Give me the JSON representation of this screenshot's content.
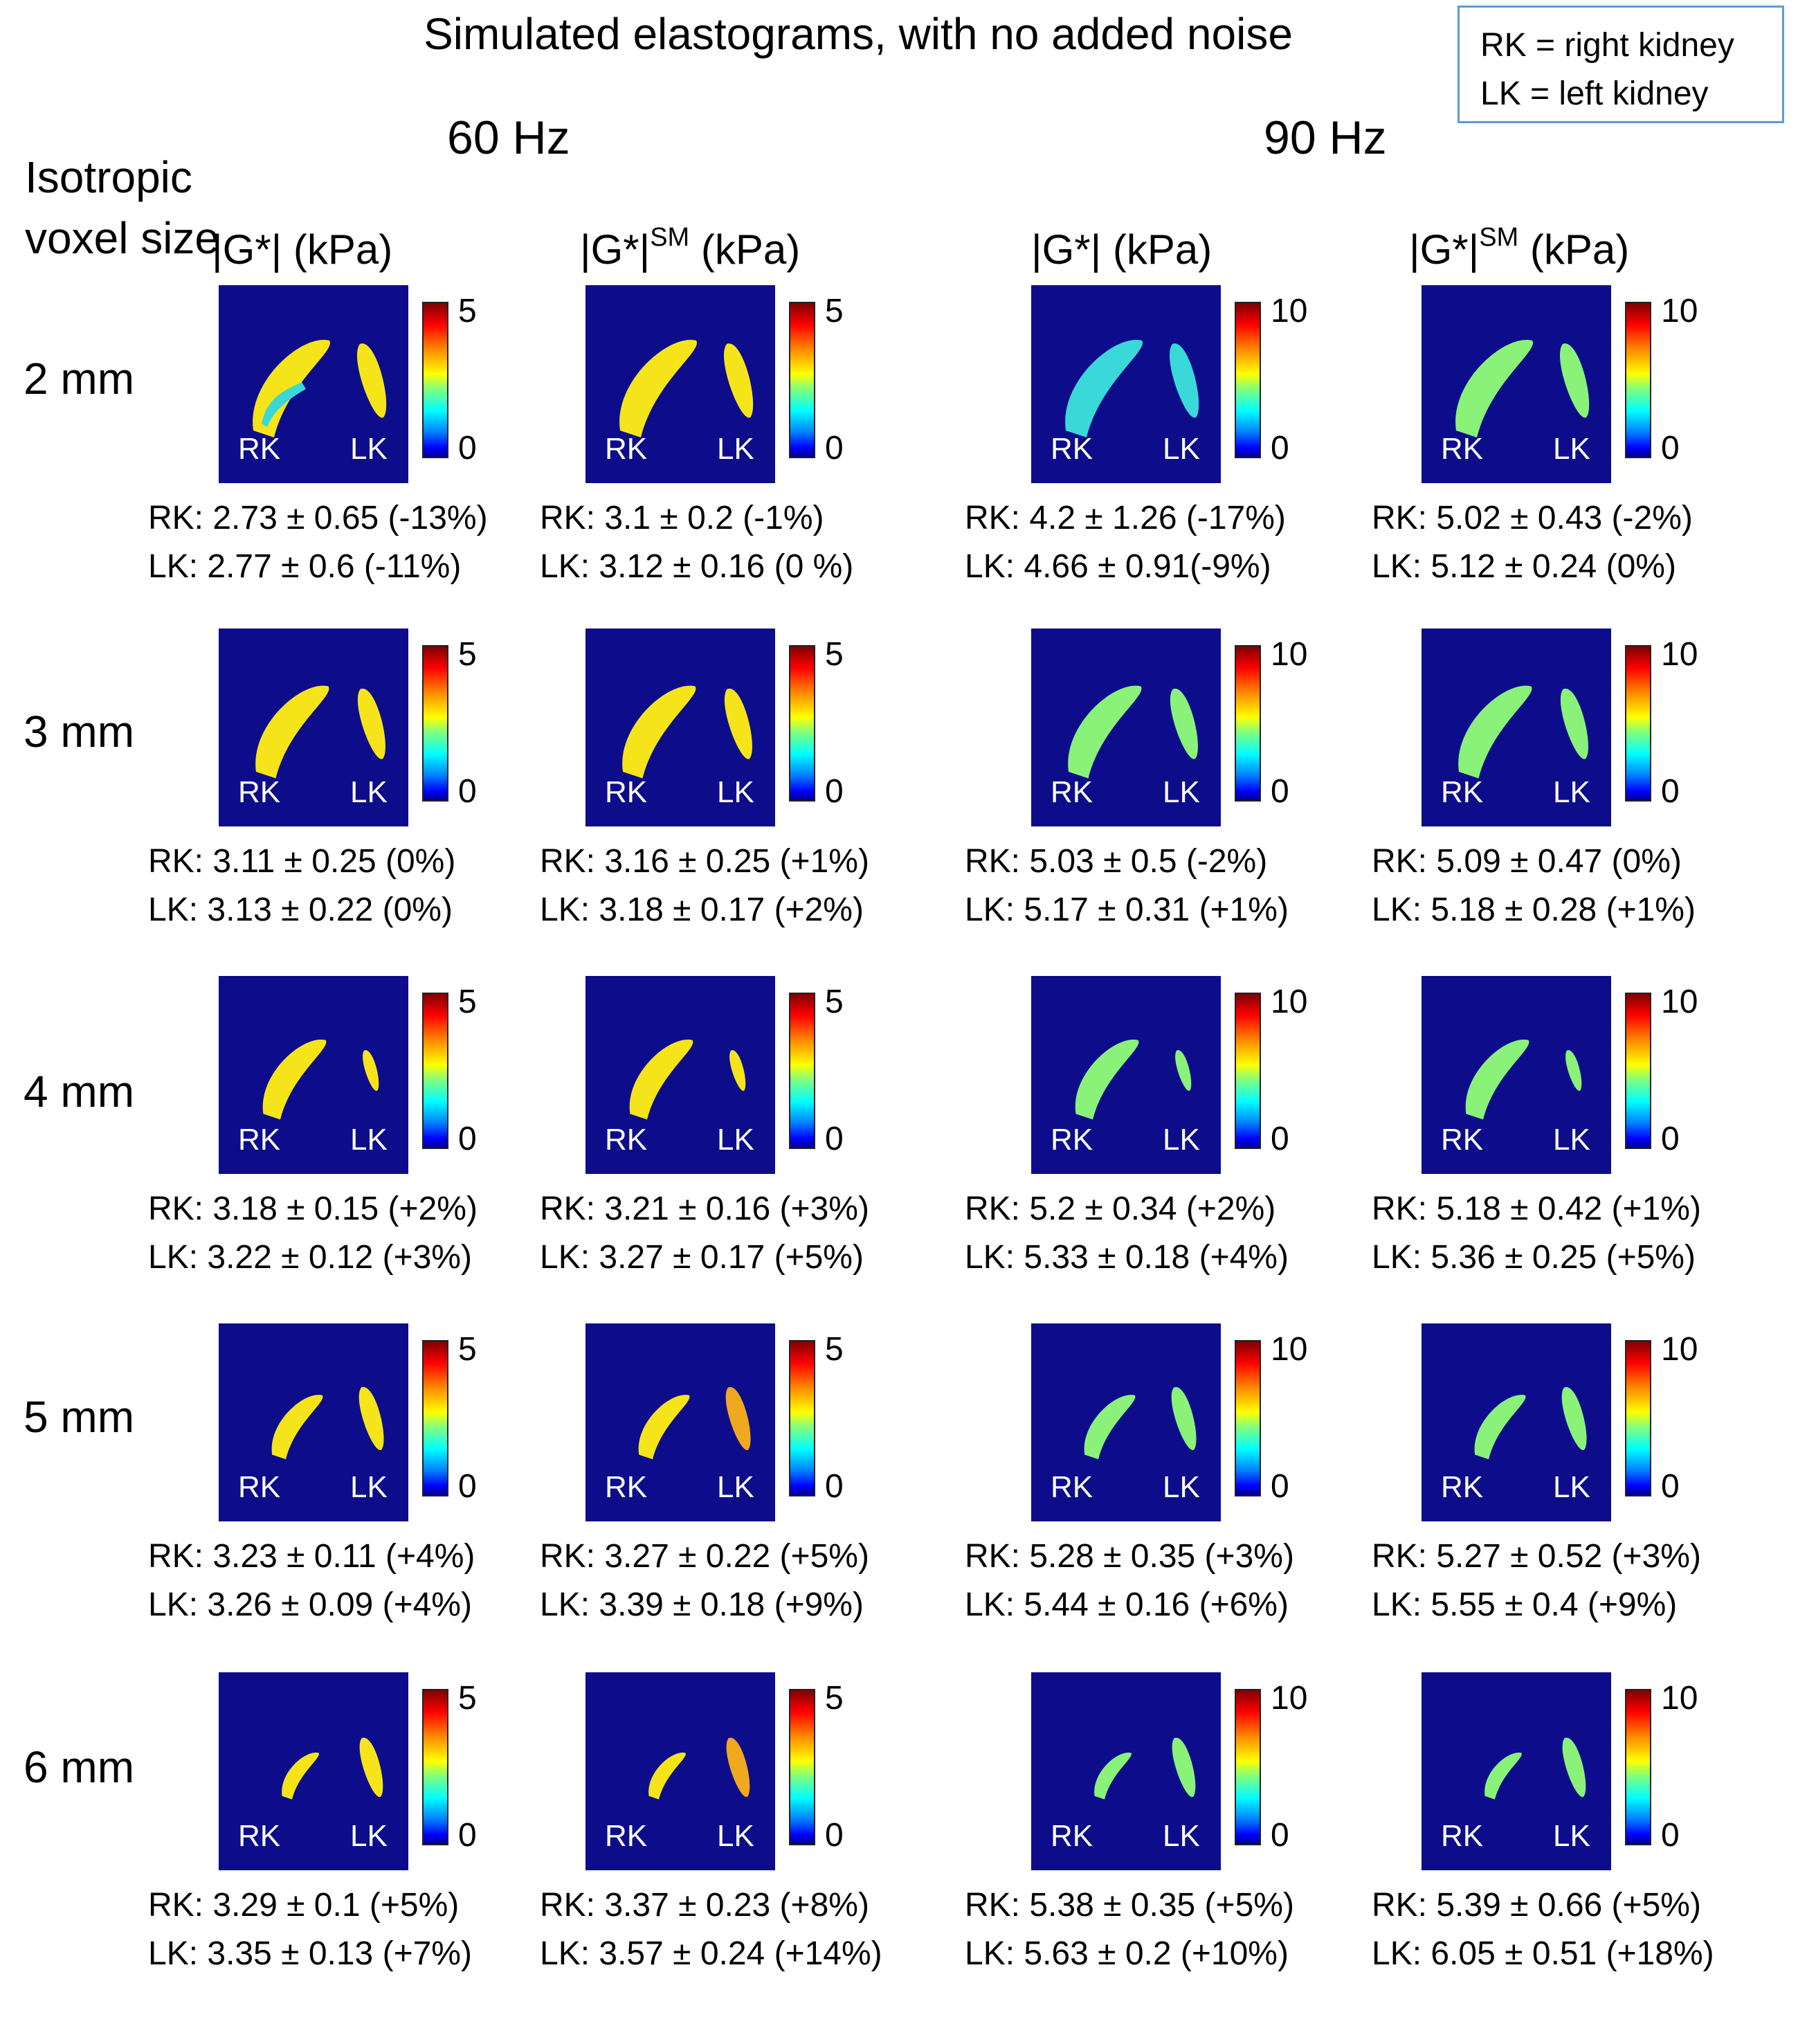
{
  "title": "Simulated elastograms, with no added noise",
  "legend": {
    "rk": "RK = right kidney",
    "lk": "LK = left kidney"
  },
  "frequencies": [
    "60 Hz",
    "90 Hz"
  ],
  "row_header": "Isotropic voxel size",
  "column_headers": [
    {
      "base": "|G*|",
      "sup": "",
      "unit": "(kPa)"
    },
    {
      "base": "|G*|",
      "sup": "SM",
      "unit": "(kPa)"
    },
    {
      "base": "|G*|",
      "sup": "",
      "unit": "(kPa)"
    },
    {
      "base": "|G*|",
      "sup": "SM",
      "unit": "(kPa)"
    }
  ],
  "kidney_labels": {
    "rk": "RK",
    "lk": "LK"
  },
  "colorbar_ticks": [
    {
      "max": "5",
      "min": "0"
    },
    {
      "max": "5",
      "min": "0"
    },
    {
      "max": "10",
      "min": "0"
    },
    {
      "max": "10",
      "min": "0"
    }
  ],
  "kidney_colors": {
    "mid_yellow": "#f5e41a",
    "orange": "#f0a91e",
    "green": "#8af278",
    "cyan": "#3ad8d8"
  },
  "rows": [
    {
      "label": "2 mm",
      "cells": [
        {
          "rk": "RK: 2.73 ± 0.65 (-13%)",
          "lk": "LK: 2.77 ± 0.6 (-11%)"
        },
        {
          "rk": "RK: 3.1 ± 0.2 (-1%)",
          "lk": "LK: 3.12 ± 0.16 (0 %)"
        },
        {
          "rk": "RK: 4.2 ± 1.26 (-17%)",
          "lk": "LK: 4.66 ± 0.91(-9%)"
        },
        {
          "rk": "RK: 5.02 ± 0.43 (-2%)",
          "lk": "LK: 5.12 ± 0.24 (0%)"
        }
      ]
    },
    {
      "label": "3 mm",
      "cells": [
        {
          "rk": "RK: 3.11 ± 0.25 (0%)",
          "lk": "LK: 3.13 ± 0.22 (0%)"
        },
        {
          "rk": "RK: 3.16 ± 0.25 (+1%)",
          "lk": "LK: 3.18 ± 0.17 (+2%)"
        },
        {
          "rk": "RK: 5.03 ± 0.5 (-2%)",
          "lk": "LK: 5.17 ± 0.31 (+1%)"
        },
        {
          "rk": "RK: 5.09 ± 0.47 (0%)",
          "lk": "LK: 5.18 ± 0.28 (+1%)"
        }
      ]
    },
    {
      "label": "4 mm",
      "cells": [
        {
          "rk": "RK: 3.18 ± 0.15 (+2%)",
          "lk": "LK: 3.22 ± 0.12 (+3%)"
        },
        {
          "rk": "RK: 3.21 ± 0.16 (+3%)",
          "lk": "LK: 3.27 ± 0.17 (+5%)"
        },
        {
          "rk": "RK: 5.2 ± 0.34 (+2%)",
          "lk": "LK: 5.33 ± 0.18 (+4%)"
        },
        {
          "rk": "RK: 5.18 ± 0.42 (+1%)",
          "lk": "LK: 5.36 ± 0.25 (+5%)"
        }
      ]
    },
    {
      "label": "5 mm",
      "cells": [
        {
          "rk": "RK: 3.23 ± 0.11 (+4%)",
          "lk": "LK: 3.26 ± 0.09 (+4%)"
        },
        {
          "rk": "RK: 3.27 ± 0.22 (+5%)",
          "lk": "LK: 3.39 ± 0.18 (+9%)"
        },
        {
          "rk": "RK: 5.28 ± 0.35 (+3%)",
          "lk": "LK: 5.44 ± 0.16 (+6%)"
        },
        {
          "rk": "RK: 5.27 ± 0.52 (+3%)",
          "lk": "LK: 5.55 ± 0.4 (+9%)"
        }
      ]
    },
    {
      "label": "6 mm",
      "cells": [
        {
          "rk": "RK: 3.29 ± 0.1 (+5%)",
          "lk": "LK: 3.35 ± 0.13 (+7%)"
        },
        {
          "rk": "RK: 3.37 ± 0.23 (+8%)",
          "lk": "LK: 3.57 ± 0.24 (+14%)"
        },
        {
          "rk": "RK: 5.38 ± 0.35 (+5%)",
          "lk": "LK: 5.63 ± 0.2 (+10%)"
        },
        {
          "rk": "RK: 5.39 ± 0.66 (+5%)",
          "lk": "LK: 6.05 ± 0.51 (+18%)"
        }
      ]
    }
  ]
}
